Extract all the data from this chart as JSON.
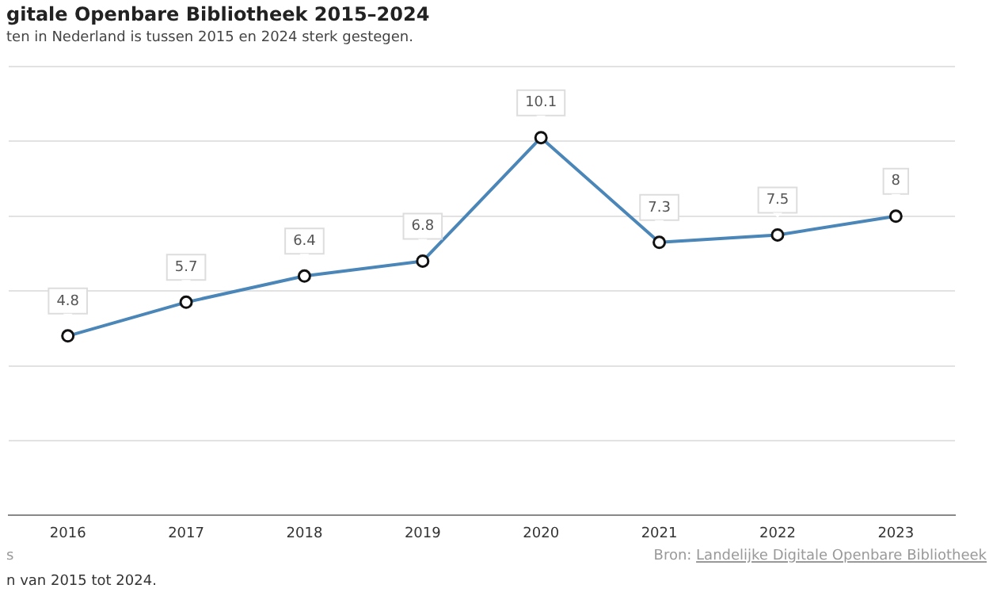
{
  "chart_data": {
    "type": "line",
    "title": "gitale Openbare Bibliotheek 2015–2024",
    "subtitle": "ten in Nederland is tussen 2015 en 2024 sterk gestegen.",
    "categories": [
      "2016",
      "2017",
      "2018",
      "2019",
      "2020",
      "2021",
      "2022",
      "2023"
    ],
    "series": [
      {
        "color": "#4a86b8",
        "values": [
          4.8,
          5.7,
          6.4,
          6.8,
          10.1,
          7.3,
          7.5,
          8.0
        ]
      }
    ],
    "ylim": [
      0,
      12
    ],
    "yticks": [
      {
        "value": 0,
        "label": null
      },
      {
        "value": 2,
        "label": null
      },
      {
        "value": 4,
        "label": null
      },
      {
        "value": 6,
        "label": null
      },
      {
        "value": 8,
        "label": null
      },
      {
        "value": 10,
        "label": null
      },
      {
        "value": 12,
        "label": null
      }
    ],
    "tick_labels": "x",
    "grid": "y",
    "marker": "circle",
    "data_labels": true,
    "legend": false,
    "annotations": [
      "s",
      "Bron: Landelijke Digitale Openbare Bibliotheek",
      "n van 2015 tot 2024."
    ]
  }
}
